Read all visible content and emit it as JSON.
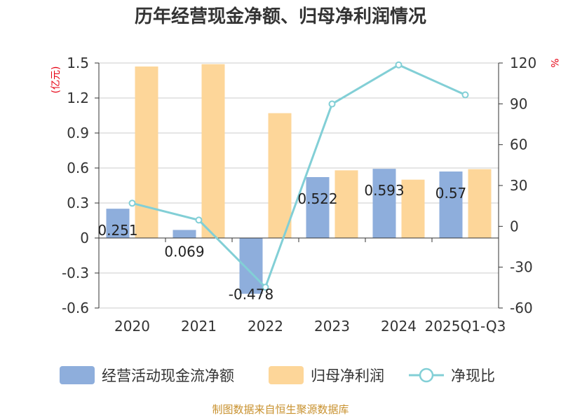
{
  "chart_data": {
    "type": "bar",
    "title": "历年经营现金净额、归母净利润情况",
    "categories": [
      "2020",
      "2021",
      "2022",
      "2023",
      "2024",
      "2025Q1-Q3"
    ],
    "series": [
      {
        "name": "经营活动现金流净额",
        "type": "bar",
        "axis": "left",
        "color": "#8eaedc",
        "values": [
          0.251,
          0.069,
          -0.478,
          0.522,
          0.593,
          0.57
        ],
        "labels": [
          "0.251",
          "0.069",
          "-0.478",
          "0.522",
          "0.593",
          "0.57"
        ]
      },
      {
        "name": "归母净利润",
        "type": "bar",
        "axis": "left",
        "color": "#fdd699",
        "values": [
          1.47,
          1.49,
          1.07,
          0.58,
          0.5,
          0.59
        ]
      },
      {
        "name": "净现比",
        "type": "line",
        "axis": "right",
        "color": "#82cfd6",
        "values": [
          17,
          4.6,
          -44.7,
          89.9,
          118.6,
          96.6
        ]
      }
    ],
    "left_axis": {
      "unit": "(亿元)",
      "ylim": [
        -0.6,
        1.5
      ],
      "ticks": [
        "1.5",
        "1.2",
        "0.9",
        "0.6",
        "0.3",
        "0",
        "-0.3",
        "-0.6"
      ]
    },
    "right_axis": {
      "unit": "%",
      "ylim": [
        -60,
        120
      ],
      "ticks": [
        "120",
        "90",
        "60",
        "30",
        "0",
        "-30",
        "-60"
      ]
    },
    "grid": true,
    "legend": "bottom"
  },
  "footer": {
    "source": "制图数据来自恒生聚源数据库"
  }
}
